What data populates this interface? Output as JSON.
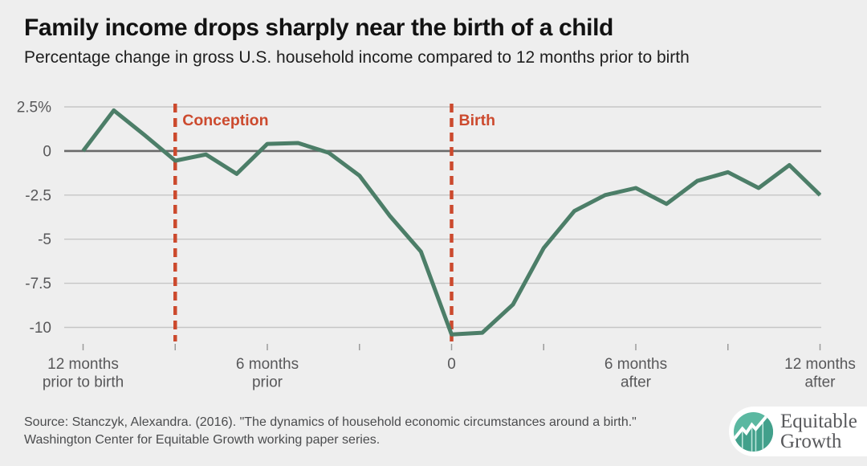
{
  "header": {
    "title": "Family income drops sharply near the birth of a child",
    "subtitle": "Percentage change in gross U.S. household income compared to 12 months prior to birth"
  },
  "chart_data": {
    "type": "line",
    "title": "Family income drops sharply near the birth of a child",
    "subtitle": "Percentage change in gross U.S. household income compared to 12 months prior to birth",
    "series_name": "Percentage change in gross household income vs. 12 months prior to birth",
    "x_unit": "months relative to birth",
    "x": [
      -12,
      -11,
      -10,
      -9,
      -8,
      -7,
      -6,
      -5,
      -4,
      -3,
      -2,
      -1,
      0,
      1,
      2,
      3,
      4,
      5,
      6,
      7,
      8,
      9,
      10,
      11,
      12
    ],
    "values": [
      0,
      2.3,
      0.9,
      -0.55,
      -0.2,
      -1.3,
      0.4,
      0.45,
      -0.1,
      -1.4,
      -3.7,
      -5.7,
      -10.4,
      -10.3,
      -8.7,
      -5.5,
      -3.4,
      -2.5,
      -2.1,
      -3.0,
      -1.7,
      -1.2,
      -2.1,
      -0.8,
      -2.5
    ],
    "ylim": [
      -10.8,
      2.5
    ],
    "xlim": [
      -12,
      12
    ],
    "grid": "horizontal",
    "legend": "none",
    "y_ticks": [
      {
        "value": 2.5,
        "label": "2.5%"
      },
      {
        "value": 0,
        "label": "0"
      },
      {
        "value": -2.5,
        "label": "-2.5"
      },
      {
        "value": -5,
        "label": "-5"
      },
      {
        "value": -7.5,
        "label": "-7.5"
      },
      {
        "value": -10,
        "label": "-10"
      }
    ],
    "x_minor_ticks": [
      -12,
      -9,
      -6,
      -3,
      0,
      3,
      6,
      9,
      12
    ],
    "x_tick_labels": [
      {
        "month": -12,
        "lines": [
          "12 months",
          "prior to birth"
        ]
      },
      {
        "month": -6,
        "lines": [
          "6 months",
          "prior"
        ]
      },
      {
        "month": 0,
        "lines": [
          "0"
        ]
      },
      {
        "month": 6,
        "lines": [
          "6 months",
          "after"
        ]
      },
      {
        "month": 12,
        "lines": [
          "12 months",
          "after"
        ]
      }
    ],
    "events": [
      {
        "label": "Conception",
        "month": -9
      },
      {
        "label": "Birth",
        "month": 0
      }
    ],
    "colors": {
      "line": "#4c7e68",
      "event": "#cc4a2e",
      "grid": "#c6c6c6",
      "zero_line": "#6a6a6a",
      "tick": "#9b9b9b",
      "axis_text": "#58585a",
      "background": "#eeeeee"
    }
  },
  "footer": {
    "source_line1": "Source: Stanczyk, Alexandra. (2016). \"The dynamics of household economic circumstances around a birth.\"",
    "source_line2": "Washington Center for Equitable Growth working paper series.",
    "logo": {
      "icon": "line-chart-circle-icon",
      "name_line1": "Equitable",
      "name_line2": "Growth"
    }
  }
}
